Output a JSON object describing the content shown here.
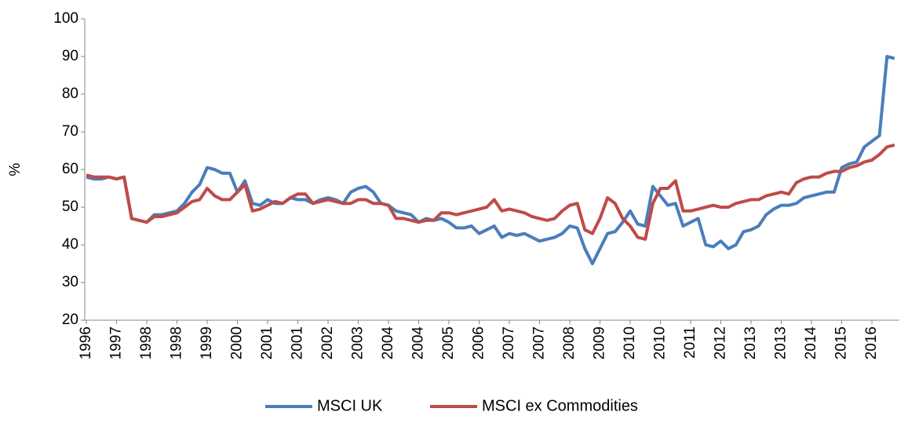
{
  "chart_data": {
    "type": "line",
    "y_label": "%",
    "categories": [
      "1996",
      null,
      null,
      null,
      "1997",
      null,
      null,
      null,
      "1998",
      null,
      null,
      null,
      "1998",
      null,
      null,
      null,
      "1999",
      null,
      null,
      null,
      "2000",
      null,
      null,
      null,
      "2001",
      null,
      null,
      null,
      "2001",
      null,
      null,
      null,
      "2002",
      null,
      null,
      null,
      "2003",
      null,
      null,
      null,
      "2004",
      null,
      null,
      null,
      "2004",
      null,
      null,
      null,
      "2005",
      null,
      null,
      null,
      "2006",
      null,
      null,
      null,
      "2007",
      null,
      null,
      null,
      "2007",
      null,
      null,
      null,
      "2008",
      null,
      null,
      null,
      "2009",
      null,
      null,
      null,
      "2010",
      null,
      null,
      null,
      "2010",
      null,
      null,
      null,
      "2011",
      null,
      null,
      null,
      "2012",
      null,
      null,
      null,
      "2013",
      null,
      null,
      null,
      "2013",
      null,
      null,
      null,
      "2014",
      null,
      null,
      null,
      "2015",
      null,
      null,
      null,
      "2016",
      null,
      null,
      null
    ],
    "series": [
      {
        "name": "MSCI UK",
        "color": "#4a7ebb",
        "values": [
          58,
          57.5,
          57.5,
          58,
          57.5,
          58,
          47,
          46.5,
          46,
          48,
          48,
          48.5,
          49,
          51,
          54,
          56,
          60.5,
          60,
          59,
          59,
          54,
          57,
          51,
          50.5,
          52,
          51,
          51,
          52.5,
          52,
          52,
          51,
          52,
          52.5,
          52,
          51,
          54,
          55,
          55.5,
          54,
          51,
          50.5,
          49,
          48.5,
          48,
          46,
          47,
          46.5,
          47,
          46,
          44.5,
          44.5,
          45,
          43,
          44,
          45,
          42,
          43,
          42.5,
          43,
          42,
          41,
          41.5,
          42,
          43,
          45,
          44.5,
          39,
          35,
          39,
          43,
          43.5,
          46,
          49,
          45.5,
          45,
          55.5,
          53,
          50.5,
          51,
          45,
          46,
          47,
          40,
          39.5,
          41,
          39,
          40,
          43.5,
          44,
          45,
          48,
          49.5,
          50.5,
          50.5,
          51,
          52.5,
          53,
          53.5,
          54,
          54,
          60.5,
          61.5,
          62,
          66,
          67.5,
          69,
          90,
          89.5
        ]
      },
      {
        "name": "MSCI ex Commodities",
        "color": "#be4b48",
        "values": [
          58.5,
          58,
          58,
          58,
          57.5,
          58,
          47,
          46.5,
          46,
          47.5,
          47.5,
          48,
          48.5,
          50,
          51.5,
          52,
          55,
          53,
          52,
          52,
          54,
          56,
          49,
          49.5,
          50.5,
          51.5,
          51,
          52.5,
          53.5,
          53.5,
          51,
          51.5,
          52,
          51.5,
          51,
          51,
          52,
          52,
          51,
          51,
          50.5,
          47,
          47,
          46.5,
          46,
          46.5,
          46.5,
          48.5,
          48.5,
          48,
          48.5,
          49,
          49.5,
          50,
          52,
          49,
          49.5,
          49,
          48.5,
          47.5,
          47,
          46.5,
          47,
          49,
          50.5,
          51,
          44,
          43,
          47,
          52.5,
          51,
          47,
          45,
          42,
          41.5,
          51,
          55,
          55,
          57,
          49,
          49,
          49.5,
          50,
          50.5,
          50,
          50,
          51,
          51.5,
          52,
          52,
          53,
          53.5,
          54,
          53.5,
          56.5,
          57.5,
          58,
          58,
          59,
          59.5,
          59.5,
          60.5,
          61,
          62,
          62.5,
          64,
          66,
          66.5
        ]
      }
    ],
    "ylim": [
      20,
      100
    ],
    "yticks": [
      20,
      30,
      40,
      50,
      60,
      70,
      80,
      90,
      100
    ],
    "grid": false,
    "legend": "bottom"
  }
}
